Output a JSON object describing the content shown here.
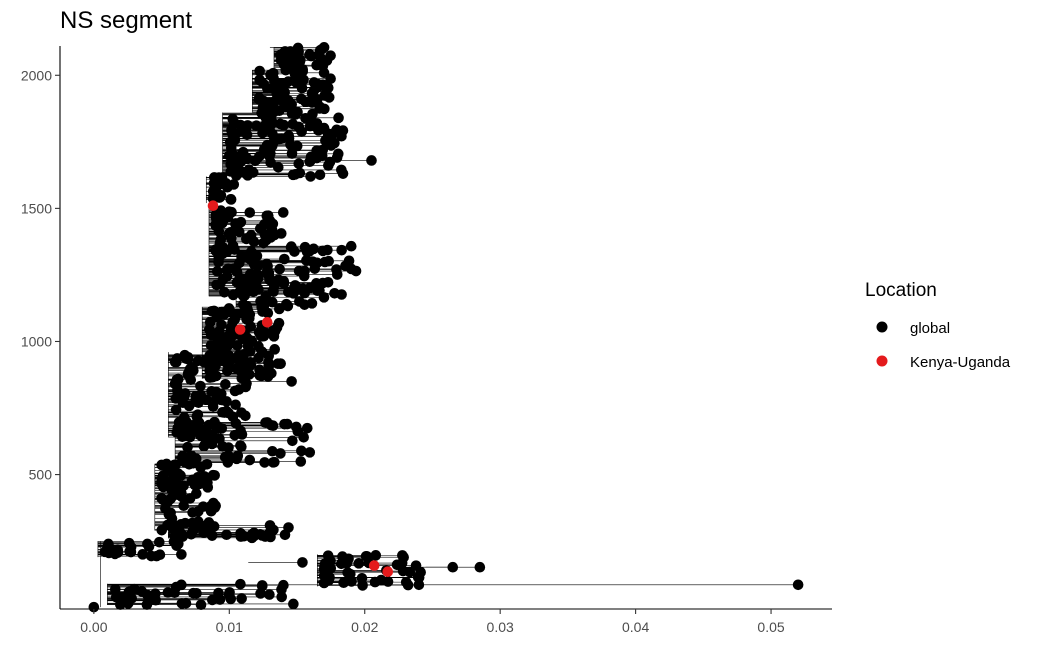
{
  "chart_data": {
    "type": "scatter",
    "title": "NS segment",
    "xlabel": "",
    "ylabel": "",
    "xlim": [
      -0.0025,
      0.0545
    ],
    "ylim": [
      -5,
      2110
    ],
    "x_ticks": [
      0.0,
      0.01,
      0.02,
      0.03,
      0.04,
      0.05
    ],
    "x_tick_labels": [
      "0.00",
      "0.01",
      "0.02",
      "0.03",
      "0.04",
      "0.05"
    ],
    "y_ticks": [
      500,
      1000,
      1500,
      2000
    ],
    "y_tick_labels": [
      "500",
      "1000",
      "1500",
      "2000"
    ],
    "grid": false,
    "legend": {
      "title": "Location",
      "placement": "right",
      "entries": [
        {
          "label": "global",
          "color": "#000000"
        },
        {
          "label": "Kenya-Uganda",
          "color": "#e41a1c"
        }
      ]
    },
    "series": [
      {
        "name": "global",
        "color": "#000000",
        "clusters": [
          {
            "y": [
              2020,
              2105
            ],
            "x": [
              0.0138,
              0.0175
            ],
            "n": 40
          },
          {
            "y": [
              1860,
              2020
            ],
            "x": [
              0.0122,
              0.0175
            ],
            "n": 70
          },
          {
            "y": [
              1620,
              1860
            ],
            "x": [
              0.01,
              0.0185
            ],
            "n": 110
          },
          {
            "y": [
              1520,
              1620
            ],
            "x": [
              0.0088,
              0.0105
            ],
            "n": 20
          },
          {
            "y": [
              1360,
              1500
            ],
            "x": [
              0.009,
              0.014
            ],
            "n": 45
          },
          {
            "y": [
              1170,
              1360
            ],
            "x": [
              0.009,
              0.0195
            ],
            "n": 90
          },
          {
            "y": [
              1130,
              1250
            ],
            "x": [
              0.011,
              0.018
            ],
            "n": 35
          },
          {
            "y": [
              860,
              1130
            ],
            "x": [
              0.0085,
              0.014
            ],
            "n": 110
          },
          {
            "y": [
              640,
              960
            ],
            "x": [
              0.006,
              0.0115
            ],
            "n": 90
          },
          {
            "y": [
              540,
              700
            ],
            "x": [
              0.0065,
              0.016
            ],
            "n": 60
          },
          {
            "y": [
              290,
              540
            ],
            "x": [
              0.005,
              0.0095
            ],
            "n": 80
          },
          {
            "y": [
              260,
              310
            ],
            "x": [
              0.006,
              0.0145
            ],
            "n": 45
          },
          {
            "y": [
              190,
              250
            ],
            "x": [
              0.0008,
              0.0065
            ],
            "n": 25
          },
          {
            "y": [
              80,
              200
            ],
            "x": [
              0.017,
              0.0245
            ],
            "n": 45
          },
          {
            "y": [
              10,
              90
            ],
            "x": [
              0.0015,
              0.015
            ],
            "n": 40
          }
        ],
        "points": [
          [
            0.0,
            2
          ],
          [
            0.052,
            86
          ],
          [
            0.0146,
            850
          ],
          [
            0.0154,
            170
          ],
          [
            0.016,
            1620
          ],
          [
            0.017,
            2105
          ],
          [
            0.0265,
            152
          ],
          [
            0.0285,
            152
          ],
          [
            0.024,
            86
          ],
          [
            0.0205,
            1680
          ]
        ]
      },
      {
        "name": "Kenya-Uganda",
        "color": "#e41a1c",
        "points": [
          [
            0.0088,
            1510
          ],
          [
            0.0108,
            1045
          ],
          [
            0.0128,
            1072
          ],
          [
            0.0207,
            158
          ],
          [
            0.0217,
            135
          ]
        ]
      }
    ]
  }
}
